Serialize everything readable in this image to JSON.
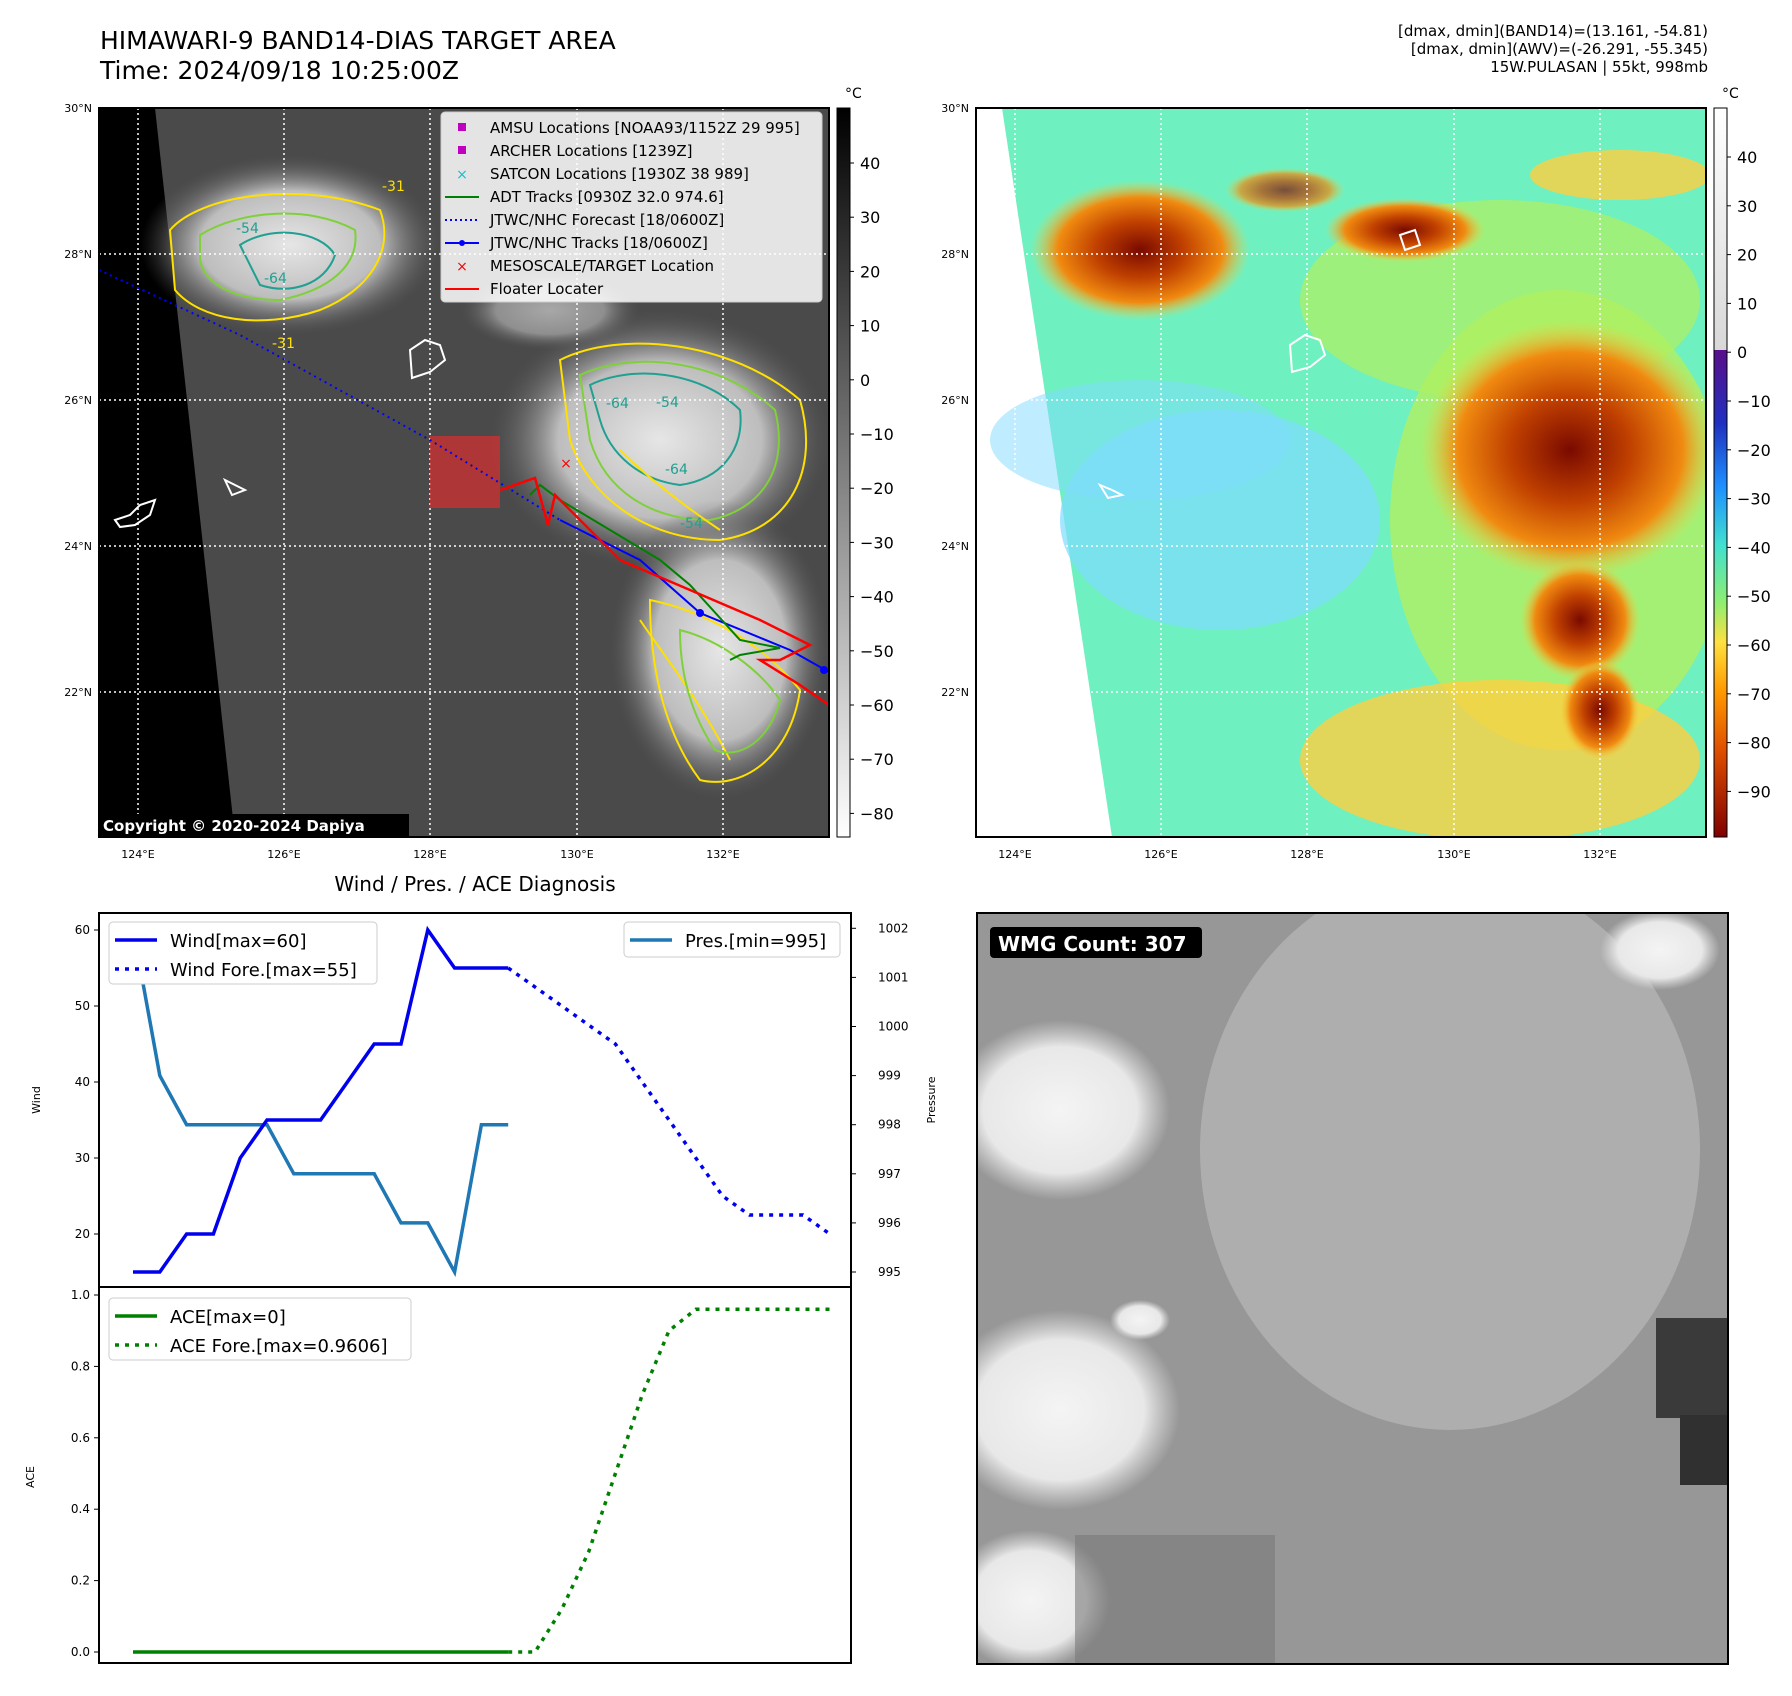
{
  "header": {
    "title_line1": "HIMAWARI-9 BAND14-DIAS TARGET AREA",
    "title_line2": "Time: 2024/09/18 10:25:00Z",
    "stats_line1": "[dmax, dmin](BAND14)=(13.161, -54.81)",
    "stats_line2": "[dmax, dmin](AWV)=(-26.291, -55.345)",
    "stats_line3": "15W.PULASAN | 55kt, 998mb"
  },
  "copyright": "Copyright © 2020-2024 Dapiya",
  "map_axes": {
    "lat_labels": [
      "30°N",
      "28°N",
      "26°N",
      "24°N",
      "22°N"
    ],
    "lon_labels": [
      "124°E",
      "126°E",
      "128°E",
      "130°E",
      "132°E"
    ],
    "colorbar_unit": "°C",
    "ir_colorbar_ticks": [
      "40",
      "30",
      "20",
      "10",
      "0",
      "−10",
      "−20",
      "−30",
      "−40",
      "−50",
      "−60",
      "−70",
      "−80"
    ],
    "awv_colorbar_ticks": [
      "40",
      "30",
      "20",
      "10",
      "0",
      "−10",
      "−20",
      "−30",
      "−40",
      "−50",
      "−60",
      "−70",
      "−80",
      "−90"
    ],
    "contour_labels": [
      "-31",
      "-54",
      "-64",
      "-31",
      "-64",
      "-54",
      "-64",
      "-54"
    ]
  },
  "legend": {
    "items": [
      {
        "label": "AMSU Locations [NOAA93/1152Z 29 995]",
        "color": "#c000c0",
        "kind": "square"
      },
      {
        "label": "ARCHER Locations [1239Z]",
        "color": "#c000c0",
        "kind": "square"
      },
      {
        "label": "SATCON Locations [1930Z 38 989]",
        "color": "#17becf",
        "kind": "x"
      },
      {
        "label": "ADT Tracks [0930Z 32.0 974.6]",
        "color": "#008000",
        "kind": "line"
      },
      {
        "label": "JTWC/NHC Forecast [18/0600Z]",
        "color": "#0000ff",
        "kind": "dotted"
      },
      {
        "label": "JTWC/NHC Tracks [18/0600Z]",
        "color": "#0000ff",
        "kind": "line-dot"
      },
      {
        "label": "MESOSCALE/TARGET Location",
        "color": "#ff0000",
        "kind": "x"
      },
      {
        "label": "Floater Locater",
        "color": "#ff0000",
        "kind": "line"
      }
    ]
  },
  "diag_title": "Wind / Pres. / ACE Diagnosis",
  "wmg_label": "WMG Count: 307",
  "chart_data": [
    {
      "type": "line",
      "title": "Wind / Pres. / ACE Diagnosis",
      "ylabel": "Wind",
      "y2label": "Pressure",
      "ylim": [
        15,
        62
      ],
      "y2lim": [
        994.8,
        1002.2
      ],
      "yticks": [
        20,
        30,
        40,
        50,
        60
      ],
      "y2ticks": [
        995,
        996,
        997,
        998,
        999,
        1000,
        1001,
        1002
      ],
      "series": [
        {
          "name": "Wind[max=60]",
          "axis": "left",
          "style": "solid",
          "color": "#0000ee",
          "values": [
            15,
            15,
            20,
            20,
            30,
            35,
            35,
            35,
            40,
            45,
            45,
            60,
            55,
            55,
            55
          ]
        },
        {
          "name": "Wind Fore.[max=55]",
          "axis": "left",
          "style": "dotted",
          "color": "#0000ee",
          "offset": 14,
          "values": [
            55,
            52.5,
            50,
            47.5,
            45,
            40,
            35,
            30,
            25,
            22.5,
            22.5,
            22.5,
            20
          ]
        },
        {
          "name": "Pres.[min=995]",
          "axis": "right",
          "style": "solid",
          "color": "#1f77b4",
          "values": [
            1002,
            999,
            998,
            998,
            998,
            998,
            997,
            997,
            997,
            997,
            996,
            996,
            995,
            998,
            998
          ]
        }
      ]
    },
    {
      "type": "line",
      "ylabel": "ACE",
      "ylim": [
        -0.05,
        1.0
      ],
      "yticks": [
        "0.0",
        "0.2",
        "0.4",
        "0.6",
        "0.8",
        "1.0"
      ],
      "series": [
        {
          "name": "ACE[max=0]",
          "style": "solid",
          "color": "#008000",
          "values": [
            0,
            0,
            0,
            0,
            0,
            0,
            0,
            0,
            0,
            0,
            0,
            0,
            0,
            0,
            0
          ]
        },
        {
          "name": "ACE Fore.[max=0.9606]",
          "style": "dotted",
          "color": "#008000",
          "offset": 14,
          "values": [
            0,
            0,
            0.12,
            0.28,
            0.5,
            0.72,
            0.9,
            0.96,
            0.96,
            0.96,
            0.96,
            0.96,
            0.96
          ]
        }
      ]
    }
  ]
}
